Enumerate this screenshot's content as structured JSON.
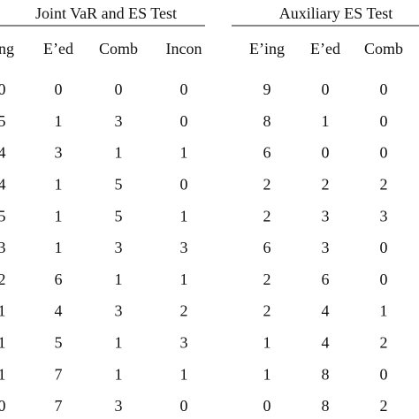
{
  "header": {
    "groups": [
      "Joint VaR and ES Test",
      "Auxiliary ES Test"
    ]
  },
  "table": {
    "columns": [
      "E’ing",
      "E’ed",
      "Comb",
      "Incon",
      "E’ing",
      "E’ed",
      "Comb"
    ],
    "rows": [
      [
        "0",
        "0",
        "0",
        "0",
        "9",
        "0",
        "0"
      ],
      [
        "5",
        "1",
        "3",
        "0",
        "8",
        "1",
        "0"
      ],
      [
        "4",
        "3",
        "1",
        "1",
        "6",
        "0",
        "0"
      ],
      [
        "4",
        "1",
        "5",
        "0",
        "2",
        "2",
        "2"
      ],
      [
        "5",
        "1",
        "5",
        "1",
        "2",
        "3",
        "3"
      ],
      [
        "3",
        "1",
        "3",
        "3",
        "6",
        "3",
        "0"
      ],
      [
        "2",
        "6",
        "1",
        "1",
        "2",
        "6",
        "0"
      ],
      [
        "1",
        "4",
        "3",
        "2",
        "2",
        "4",
        "1"
      ],
      [
        "1",
        "5",
        "1",
        "3",
        "1",
        "4",
        "2"
      ],
      [
        "1",
        "7",
        "1",
        "1",
        "1",
        "8",
        "0"
      ],
      [
        "0",
        "7",
        "3",
        "0",
        "0",
        "8",
        "2"
      ]
    ]
  }
}
